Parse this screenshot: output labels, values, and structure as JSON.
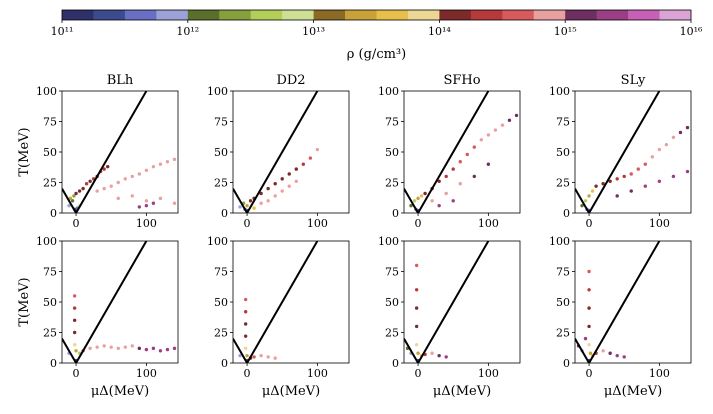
{
  "colorbar": {
    "ticks": [
      "10¹¹",
      "10¹²",
      "10¹³",
      "10¹⁴",
      "10¹⁵",
      "10¹⁶"
    ],
    "label": "ρ (g/cm³)",
    "colors": [
      "#2f2f6a",
      "#3c4b8e",
      "#6a6fc4",
      "#9aa2d8",
      "#5a6f2c",
      "#86a03c",
      "#b3cf5a",
      "#cfdf96",
      "#8b6a26",
      "#c8a238",
      "#e8bf4a",
      "#ecd795",
      "#7d2a2a",
      "#b63a3a",
      "#d85a5e",
      "#e8a0a0",
      "#6d2f5f",
      "#9a3f86",
      "#c860b8",
      "#dba3d6"
    ]
  },
  "ylabel": "T(MeV)",
  "xlabel": "μΔ(MeV)",
  "chart_data": {
    "type": "scatter",
    "panels": [
      "BLh",
      "DD2",
      "SFHo",
      "SLy"
    ],
    "rows": 2,
    "xlim": [
      -20,
      145
    ],
    "ylim": [
      0,
      100
    ],
    "xticks": [
      "0",
      "100"
    ],
    "yticks": [
      "0",
      "25",
      "50",
      "75",
      "100"
    ],
    "reference_lines": [
      {
        "name": "upper-line",
        "x": [
          0,
          100
        ],
        "y": [
          0,
          100
        ]
      },
      {
        "name": "left-line",
        "x": [
          -20,
          0
        ],
        "y": [
          20,
          0
        ]
      }
    ],
    "series": [
      {
        "name": "BLh",
        "row": 0,
        "points": [
          [
            -10,
            6,
            3
          ],
          [
            -5,
            10,
            4
          ],
          [
            -3,
            14,
            5
          ],
          [
            0,
            16,
            12
          ],
          [
            5,
            18,
            12
          ],
          [
            10,
            20,
            12
          ],
          [
            15,
            24,
            13
          ],
          [
            20,
            26,
            12
          ],
          [
            25,
            28,
            13
          ],
          [
            30,
            30,
            12
          ],
          [
            35,
            34,
            13
          ],
          [
            40,
            36,
            13
          ],
          [
            45,
            38,
            12
          ],
          [
            30,
            18,
            15
          ],
          [
            40,
            20,
            15
          ],
          [
            50,
            22,
            15
          ],
          [
            60,
            25,
            15
          ],
          [
            70,
            28,
            15
          ],
          [
            80,
            30,
            15
          ],
          [
            90,
            32,
            15
          ],
          [
            100,
            35,
            15
          ],
          [
            110,
            38,
            15
          ],
          [
            120,
            40,
            15
          ],
          [
            130,
            42,
            15
          ],
          [
            140,
            44,
            15
          ],
          [
            60,
            12,
            15
          ],
          [
            80,
            14,
            15
          ],
          [
            100,
            10,
            15
          ],
          [
            120,
            12,
            15
          ],
          [
            140,
            8,
            15
          ],
          [
            90,
            5,
            17
          ],
          [
            100,
            6,
            17
          ],
          [
            110,
            8,
            17
          ],
          [
            0,
            2,
            1
          ],
          [
            2,
            4,
            2
          ],
          [
            -2,
            3,
            1
          ],
          [
            5,
            6,
            7
          ],
          [
            -8,
            12,
            9
          ]
        ]
      },
      {
        "name": "DD2",
        "row": 0,
        "points": [
          [
            -10,
            5,
            3
          ],
          [
            -5,
            8,
            5
          ],
          [
            0,
            6,
            9
          ],
          [
            5,
            10,
            12
          ],
          [
            10,
            12,
            12
          ],
          [
            20,
            16,
            12
          ],
          [
            30,
            20,
            12
          ],
          [
            40,
            24,
            12
          ],
          [
            50,
            28,
            12
          ],
          [
            60,
            32,
            12
          ],
          [
            70,
            36,
            12
          ],
          [
            80,
            40,
            13
          ],
          [
            90,
            45,
            14
          ],
          [
            100,
            52,
            15
          ],
          [
            20,
            8,
            15
          ],
          [
            30,
            10,
            15
          ],
          [
            40,
            14,
            15
          ],
          [
            50,
            18,
            15
          ],
          [
            60,
            22,
            15
          ],
          [
            70,
            26,
            15
          ],
          [
            10,
            4,
            10
          ],
          [
            0,
            2,
            1
          ],
          [
            -3,
            3,
            2
          ]
        ]
      },
      {
        "name": "SFHo",
        "row": 0,
        "points": [
          [
            -10,
            6,
            4
          ],
          [
            -5,
            10,
            6
          ],
          [
            0,
            12,
            9
          ],
          [
            5,
            14,
            10
          ],
          [
            10,
            16,
            12
          ],
          [
            20,
            20,
            12
          ],
          [
            30,
            26,
            12
          ],
          [
            40,
            30,
            13
          ],
          [
            50,
            36,
            13
          ],
          [
            60,
            42,
            14
          ],
          [
            70,
            48,
            14
          ],
          [
            80,
            54,
            14
          ],
          [
            90,
            60,
            15
          ],
          [
            100,
            64,
            15
          ],
          [
            110,
            68,
            15
          ],
          [
            120,
            72,
            15
          ],
          [
            130,
            76,
            16
          ],
          [
            140,
            80,
            16
          ],
          [
            20,
            10,
            15
          ],
          [
            40,
            16,
            15
          ],
          [
            60,
            24,
            15
          ],
          [
            80,
            30,
            16
          ],
          [
            100,
            40,
            16
          ],
          [
            30,
            6,
            17
          ],
          [
            50,
            10,
            17
          ],
          [
            0,
            2,
            1
          ],
          [
            -3,
            3,
            2
          ]
        ]
      },
      {
        "name": "SLy",
        "row": 0,
        "points": [
          [
            -10,
            6,
            4
          ],
          [
            -5,
            10,
            6
          ],
          [
            0,
            14,
            9
          ],
          [
            5,
            18,
            10
          ],
          [
            10,
            22,
            12
          ],
          [
            20,
            24,
            12
          ],
          [
            30,
            26,
            12
          ],
          [
            40,
            28,
            13
          ],
          [
            50,
            30,
            13
          ],
          [
            60,
            32,
            14
          ],
          [
            70,
            36,
            14
          ],
          [
            80,
            40,
            14
          ],
          [
            90,
            46,
            15
          ],
          [
            100,
            52,
            15
          ],
          [
            110,
            56,
            15
          ],
          [
            120,
            62,
            15
          ],
          [
            130,
            66,
            16
          ],
          [
            140,
            70,
            16
          ],
          [
            40,
            14,
            16
          ],
          [
            60,
            18,
            16
          ],
          [
            80,
            22,
            17
          ],
          [
            100,
            26,
            17
          ],
          [
            120,
            30,
            17
          ],
          [
            140,
            34,
            17
          ],
          [
            0,
            2,
            1
          ],
          [
            -3,
            3,
            2
          ]
        ]
      },
      {
        "name": "BLh",
        "row": 1,
        "points": [
          [
            -2,
            55,
            14
          ],
          [
            -2,
            45,
            13
          ],
          [
            -2,
            35,
            12
          ],
          [
            -2,
            25,
            12
          ],
          [
            -2,
            15,
            11
          ],
          [
            0,
            10,
            9
          ],
          [
            5,
            8,
            6
          ],
          [
            10,
            10,
            14
          ],
          [
            20,
            12,
            15
          ],
          [
            30,
            13,
            15
          ],
          [
            40,
            14,
            15
          ],
          [
            50,
            13,
            15
          ],
          [
            60,
            12,
            15
          ],
          [
            70,
            13,
            15
          ],
          [
            80,
            14,
            15
          ],
          [
            90,
            12,
            16
          ],
          [
            100,
            11,
            17
          ],
          [
            110,
            12,
            17
          ],
          [
            120,
            10,
            17
          ],
          [
            130,
            11,
            17
          ],
          [
            140,
            12,
            17
          ],
          [
            -10,
            8,
            3
          ],
          [
            0,
            2,
            1
          ]
        ]
      },
      {
        "name": "DD2",
        "row": 1,
        "points": [
          [
            -2,
            52,
            14
          ],
          [
            -2,
            42,
            13
          ],
          [
            -2,
            32,
            12
          ],
          [
            -2,
            22,
            12
          ],
          [
            -2,
            12,
            11
          ],
          [
            0,
            6,
            9
          ],
          [
            5,
            4,
            12
          ],
          [
            10,
            5,
            14
          ],
          [
            20,
            6,
            15
          ],
          [
            30,
            5,
            15
          ],
          [
            40,
            4,
            15
          ],
          [
            -10,
            6,
            3
          ],
          [
            0,
            2,
            1
          ]
        ]
      },
      {
        "name": "SFHo",
        "row": 1,
        "points": [
          [
            -2,
            80,
            14
          ],
          [
            -2,
            60,
            13
          ],
          [
            -2,
            45,
            12
          ],
          [
            -2,
            30,
            12
          ],
          [
            -2,
            15,
            11
          ],
          [
            0,
            8,
            9
          ],
          [
            5,
            6,
            10
          ],
          [
            10,
            7,
            13
          ],
          [
            20,
            8,
            15
          ],
          [
            30,
            6,
            16
          ],
          [
            40,
            5,
            17
          ],
          [
            -10,
            8,
            3
          ],
          [
            -15,
            12,
            4
          ],
          [
            0,
            2,
            1
          ]
        ]
      },
      {
        "name": "SLy",
        "row": 1,
        "points": [
          [
            0,
            75,
            14
          ],
          [
            0,
            60,
            13
          ],
          [
            0,
            45,
            12
          ],
          [
            0,
            30,
            12
          ],
          [
            0,
            15,
            11
          ],
          [
            2,
            8,
            9
          ],
          [
            5,
            6,
            10
          ],
          [
            10,
            8,
            13
          ],
          [
            20,
            10,
            15
          ],
          [
            30,
            8,
            16
          ],
          [
            40,
            6,
            17
          ],
          [
            50,
            5,
            17
          ],
          [
            -10,
            10,
            3
          ],
          [
            -15,
            14,
            16
          ],
          [
            -5,
            20,
            17
          ],
          [
            0,
            2,
            1
          ]
        ]
      }
    ]
  }
}
